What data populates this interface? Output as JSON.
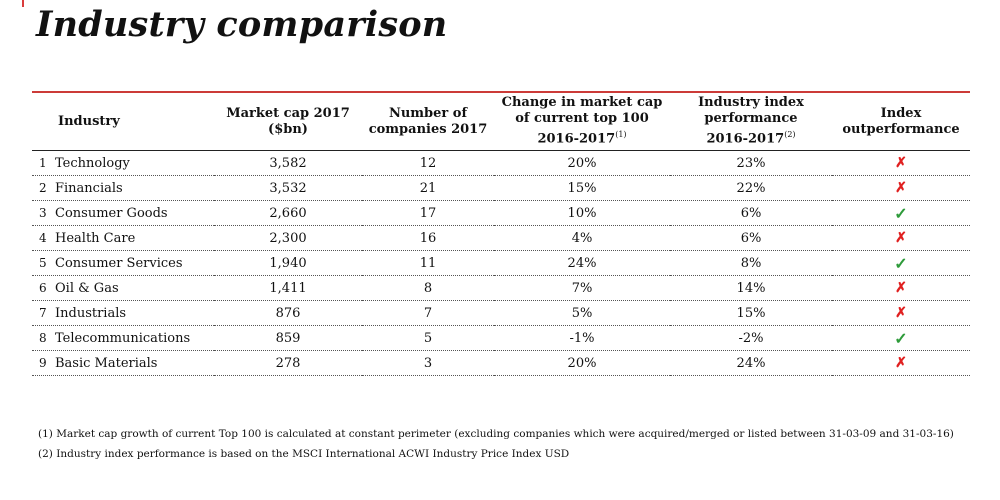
{
  "title": "Industry comparison",
  "table": {
    "headers": {
      "industry": "Industry",
      "market_cap_line1": "Market cap 2017",
      "market_cap_line2": "($bn)",
      "companies_line1": "Number of",
      "companies_line2": "companies 2017",
      "change_line1": "Change in market cap",
      "change_line2": "of current top 100",
      "change_line3": "2016-2017",
      "change_sup": "(1)",
      "perf_line1": "Industry index",
      "perf_line2": "performance",
      "perf_line3": "2016-2017",
      "perf_sup": "(2)",
      "outperf_line1": "Index",
      "outperf_line2": "outperformance"
    },
    "rows": [
      {
        "rank": "1",
        "industry": "Technology",
        "market_cap": "3,582",
        "companies": "12",
        "change": "20%",
        "performance": "23%",
        "outperformance": "✗"
      },
      {
        "rank": "2",
        "industry": "Financials",
        "market_cap": "3,532",
        "companies": "21",
        "change": "15%",
        "performance": "22%",
        "outperformance": "✗"
      },
      {
        "rank": "3",
        "industry": "Consumer Goods",
        "market_cap": "2,660",
        "companies": "17",
        "change": "10%",
        "performance": "6%",
        "outperformance": "✓"
      },
      {
        "rank": "4",
        "industry": "Health Care",
        "market_cap": "2,300",
        "companies": "16",
        "change": "4%",
        "performance": "6%",
        "outperformance": "✗"
      },
      {
        "rank": "5",
        "industry": "Consumer Services",
        "market_cap": "1,940",
        "companies": "11",
        "change": "24%",
        "performance": "8%",
        "outperformance": "✓"
      },
      {
        "rank": "6",
        "industry": "Oil & Gas",
        "market_cap": "1,411",
        "companies": "8",
        "change": "7%",
        "performance": "14%",
        "outperformance": "✗"
      },
      {
        "rank": "7",
        "industry": "Industrials",
        "market_cap": "876",
        "companies": "7",
        "change": "5%",
        "performance": "15%",
        "outperformance": "✗"
      },
      {
        "rank": "8",
        "industry": "Telecommunications",
        "market_cap": "859",
        "companies": "5",
        "change": "-1%",
        "performance": "-2%",
        "outperformance": "✓"
      },
      {
        "rank": "9",
        "industry": "Basic Materials",
        "market_cap": "278",
        "companies": "3",
        "change": "20%",
        "performance": "24%",
        "outperformance": "✗"
      }
    ]
  },
  "footnotes": [
    "(1) Market cap growth of current Top 100 is calculated at constant perimeter (excluding companies which were acquired/merged or listed between 31-03-09 and 31-03-16)",
    "(2) Industry index performance is based on the MSCI International ACWI Industry Price Index USD"
  ],
  "colors": {
    "accent_rule": "#cc3b38",
    "cross": "#e02020",
    "check": "#2e9b3a"
  },
  "icons": {
    "cross": "cross-icon",
    "check": "check-icon"
  }
}
